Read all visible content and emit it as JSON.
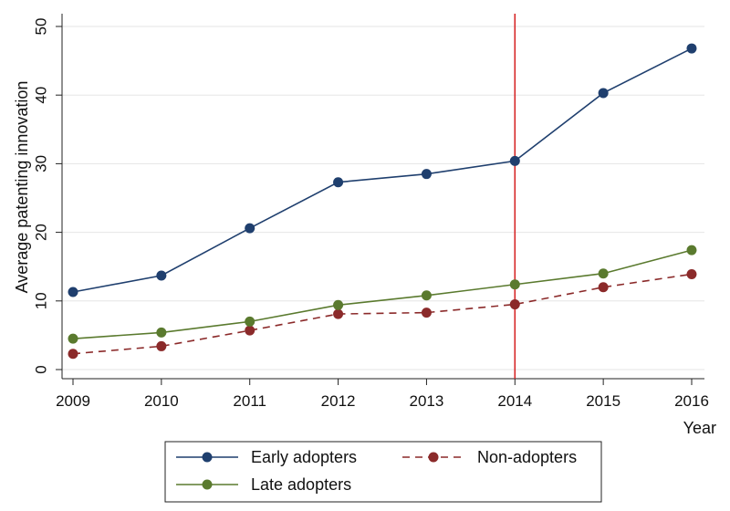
{
  "chart_data": {
    "type": "line",
    "x": [
      2009,
      2010,
      2011,
      2012,
      2013,
      2014,
      2015,
      2016
    ],
    "xlabel": "Year",
    "ylabel": "Average patenting innovation",
    "xlim": [
      2009,
      2016
    ],
    "ylim": [
      0,
      50
    ],
    "x_ticks": [
      "2009",
      "2010",
      "2011",
      "2012",
      "2013",
      "2014",
      "2015",
      "2016"
    ],
    "y_ticks": [
      "0",
      "10",
      "20",
      "30",
      "40",
      "50"
    ],
    "grid": true,
    "vertical_line": {
      "x": 2014,
      "color": "#d62728"
    },
    "series": [
      {
        "name": "Early adopters",
        "color": "#1f3f6e",
        "dash": false,
        "values": [
          11.3,
          13.7,
          20.6,
          27.3,
          28.5,
          30.4,
          40.3,
          46.8
        ]
      },
      {
        "name": "Non-adopters",
        "color": "#8b2a2a",
        "dash": true,
        "values": [
          2.3,
          3.4,
          5.7,
          8.1,
          8.3,
          9.5,
          12.0,
          13.9
        ]
      },
      {
        "name": "Late adopters",
        "color": "#5a7a2e",
        "dash": false,
        "values": [
          4.5,
          5.4,
          7.0,
          9.4,
          10.8,
          12.4,
          14.0,
          17.4
        ]
      }
    ],
    "legend_position": "bottom"
  }
}
